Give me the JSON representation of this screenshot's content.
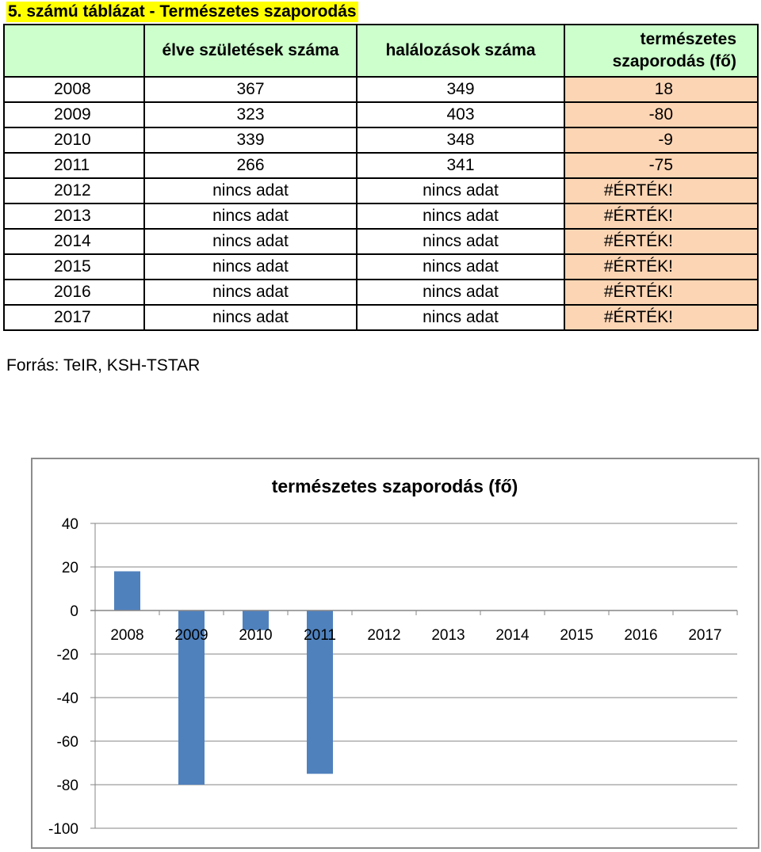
{
  "caption": "5. számú táblázat - Természetes szaporodás",
  "table": {
    "headers": [
      "",
      "élve születések száma",
      "halálozások száma",
      "természetes szaporodás (fő)"
    ],
    "header_line1": "természetes",
    "header_line2": "szaporodás (fő)",
    "rows": [
      [
        "2008",
        "367",
        "349",
        "18"
      ],
      [
        "2009",
        "323",
        "403",
        "-80"
      ],
      [
        "2010",
        "339",
        "348",
        "-9"
      ],
      [
        "2011",
        "266",
        "341",
        "-75"
      ],
      [
        "2012",
        "nincs adat",
        "nincs adat",
        "#ÉRTÉK!"
      ],
      [
        "2013",
        "nincs adat",
        "nincs adat",
        "#ÉRTÉK!"
      ],
      [
        "2014",
        "nincs adat",
        "nincs adat",
        "#ÉRTÉK!"
      ],
      [
        "2015",
        "nincs adat",
        "nincs adat",
        "#ÉRTÉK!"
      ],
      [
        "2016",
        "nincs adat",
        "nincs adat",
        "#ÉRTÉK!"
      ],
      [
        "2017",
        "nincs adat",
        "nincs adat",
        "#ÉRTÉK!"
      ]
    ]
  },
  "source": "Forrás: TeIR, KSH-TSTAR",
  "colors": {
    "header_bg": "#ccffcc",
    "value_bg": "#fcd5b4",
    "bar": "#4f81bd",
    "caption_bg": "#ffff00"
  },
  "chart_data": {
    "type": "bar",
    "title": "természetes szaporodás (fő)",
    "categories": [
      "2008",
      "2009",
      "2010",
      "2011",
      "2012",
      "2013",
      "2014",
      "2015",
      "2016",
      "2017"
    ],
    "values": [
      18,
      -80,
      -9,
      -75,
      null,
      null,
      null,
      null,
      null,
      null
    ],
    "ylim": [
      -100,
      40
    ],
    "yticks": [
      40,
      20,
      0,
      -20,
      -40,
      -60,
      -80,
      -100
    ],
    "grid": true,
    "legend": "none"
  }
}
